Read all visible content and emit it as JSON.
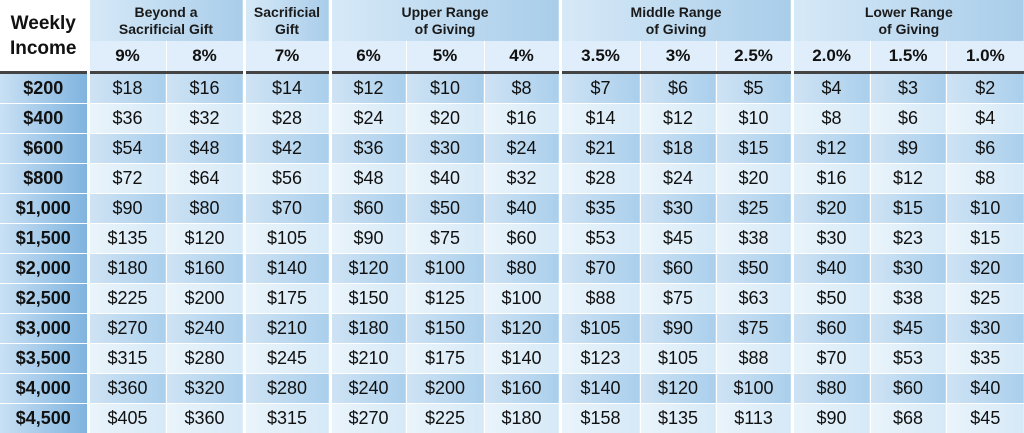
{
  "header": {
    "corner_line1": "Weekly",
    "corner_line2": "Income",
    "groups": [
      {
        "line1": "Beyond a",
        "line2": "Sacrificial Gift",
        "span": 2
      },
      {
        "line1": "Sacrificial",
        "line2": "Gift",
        "span": 1
      },
      {
        "line1": "Upper Range",
        "line2": "of Giving",
        "span": 3
      },
      {
        "line1": "Middle Range",
        "line2": "of Giving",
        "span": 3
      },
      {
        "line1": "Lower Range",
        "line2": "of Giving",
        "span": 3
      }
    ],
    "percents": [
      "9%",
      "8%",
      "7%",
      "6%",
      "5%",
      "4%",
      "3.5%",
      "3%",
      "2.5%",
      "2.0%",
      "1.5%",
      "1.0%"
    ]
  },
  "rows": [
    {
      "income": "$200",
      "values": [
        "$18",
        "$16",
        "$14",
        "$12",
        "$10",
        "$8",
        "$7",
        "$6",
        "$5",
        "$4",
        "$3",
        "$2"
      ]
    },
    {
      "income": "$400",
      "values": [
        "$36",
        "$32",
        "$28",
        "$24",
        "$20",
        "$16",
        "$14",
        "$12",
        "$10",
        "$8",
        "$6",
        "$4"
      ]
    },
    {
      "income": "$600",
      "values": [
        "$54",
        "$48",
        "$42",
        "$36",
        "$30",
        "$24",
        "$21",
        "$18",
        "$15",
        "$12",
        "$9",
        "$6"
      ]
    },
    {
      "income": "$800",
      "values": [
        "$72",
        "$64",
        "$56",
        "$48",
        "$40",
        "$32",
        "$28",
        "$24",
        "$20",
        "$16",
        "$12",
        "$8"
      ]
    },
    {
      "income": "$1,000",
      "values": [
        "$90",
        "$80",
        "$70",
        "$60",
        "$50",
        "$40",
        "$35",
        "$30",
        "$25",
        "$20",
        "$15",
        "$10"
      ]
    },
    {
      "income": "$1,500",
      "values": [
        "$135",
        "$120",
        "$105",
        "$90",
        "$75",
        "$60",
        "$53",
        "$45",
        "$38",
        "$30",
        "$23",
        "$15"
      ]
    },
    {
      "income": "$2,000",
      "values": [
        "$180",
        "$160",
        "$140",
        "$120",
        "$100",
        "$80",
        "$70",
        "$60",
        "$50",
        "$40",
        "$30",
        "$20"
      ]
    },
    {
      "income": "$2,500",
      "values": [
        "$225",
        "$200",
        "$175",
        "$150",
        "$125",
        "$100",
        "$88",
        "$75",
        "$63",
        "$50",
        "$38",
        "$25"
      ]
    },
    {
      "income": "$3,000",
      "values": [
        "$270",
        "$240",
        "$210",
        "$180",
        "$150",
        "$120",
        "$105",
        "$90",
        "$75",
        "$60",
        "$45",
        "$30"
      ]
    },
    {
      "income": "$3,500",
      "values": [
        "$315",
        "$280",
        "$245",
        "$210",
        "$175",
        "$140",
        "$123",
        "$105",
        "$88",
        "$70",
        "$53",
        "$35"
      ]
    },
    {
      "income": "$4,000",
      "values": [
        "$360",
        "$320",
        "$280",
        "$240",
        "$200",
        "$160",
        "$140",
        "$120",
        "$100",
        "$80",
        "$60",
        "$40"
      ]
    },
    {
      "income": "$4,500",
      "values": [
        "$405",
        "$360",
        "$315",
        "$270",
        "$225",
        "$180",
        "$158",
        "$135",
        "$113",
        "$90",
        "$68",
        "$45"
      ]
    }
  ]
}
